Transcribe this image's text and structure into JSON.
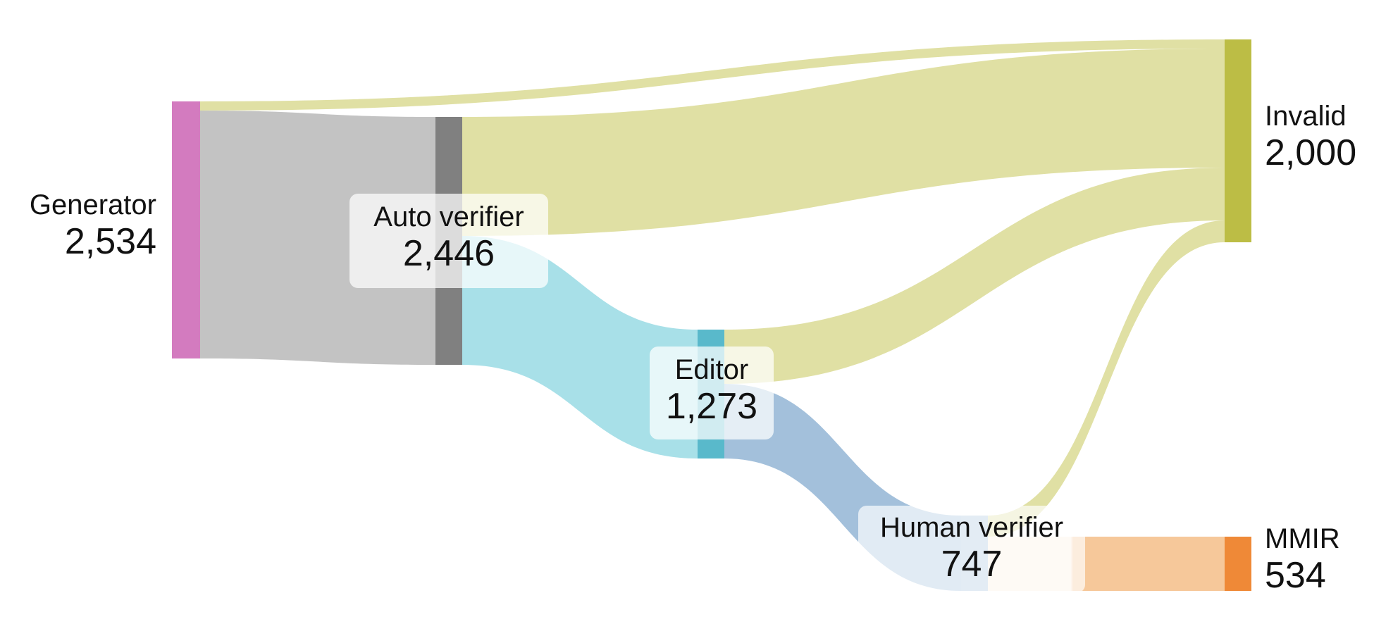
{
  "nodes": [
    {
      "id": "generator",
      "name": "Generator",
      "value": "2,534",
      "color": "#d37bbf"
    },
    {
      "id": "auto",
      "name": "Auto verifier",
      "value": "2,446",
      "color": "#808080"
    },
    {
      "id": "editor",
      "name": "Editor",
      "value": "1,273",
      "color": "#59b9cb"
    },
    {
      "id": "human",
      "name": "Human verifier",
      "value": "747",
      "color": "#a7c3de"
    },
    {
      "id": "invalid",
      "name": "Invalid",
      "value": "2,000",
      "color": "#bcbd45"
    },
    {
      "id": "mmir",
      "name": "MMIR",
      "value": "534",
      "color": "#ef8937"
    }
  ],
  "links": [
    {
      "source": "Generator",
      "target": "Invalid",
      "value": 88
    },
    {
      "source": "Generator",
      "target": "Auto verifier",
      "value": 2446
    },
    {
      "source": "Auto verifier",
      "target": "Invalid",
      "value": 1173
    },
    {
      "source": "Auto verifier",
      "target": "Editor",
      "value": 1273
    },
    {
      "source": "Editor",
      "target": "Invalid",
      "value": 526
    },
    {
      "source": "Editor",
      "target": "Human verifier",
      "value": 747
    },
    {
      "source": "Human verifier",
      "target": "Invalid",
      "value": 213
    },
    {
      "source": "Human verifier",
      "target": "MMIR",
      "value": 534
    }
  ],
  "colors": {
    "invalid_flow": "#e0e0a4",
    "generator_flow": "#c3c3c3",
    "auto_to_editor_flow": "#a8e0e8",
    "editor_to_human_flow": "#a3c0db",
    "human_to_mmir_flow": "#f6c89a",
    "human_to_mmir_flow_light": "#fbeedf"
  }
}
